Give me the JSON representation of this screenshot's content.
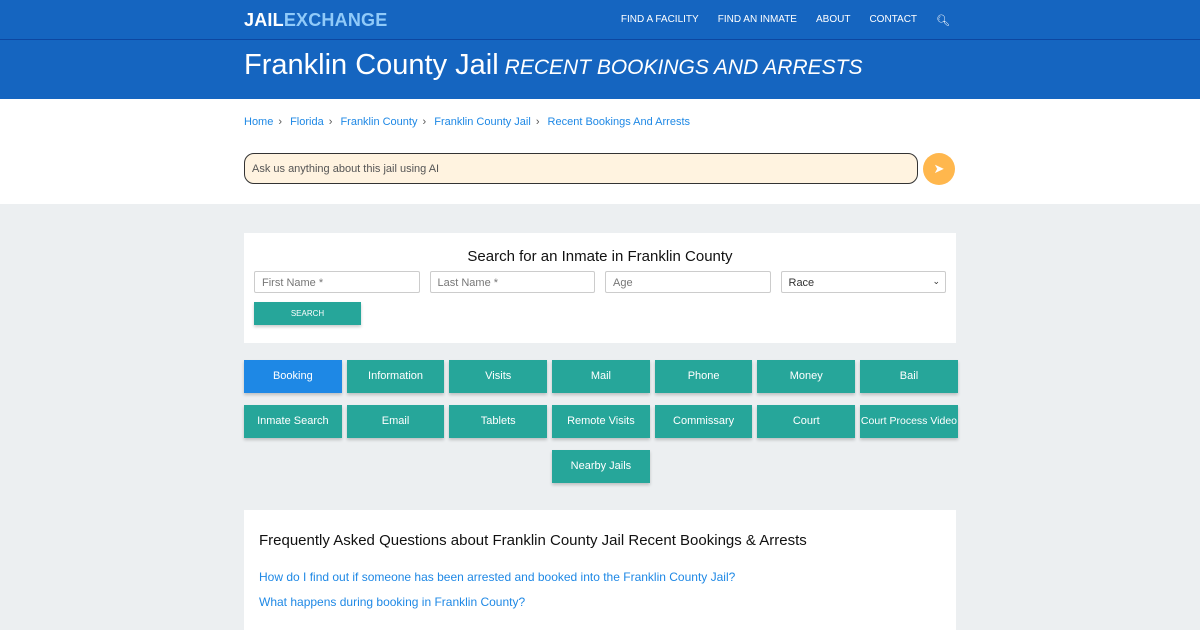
{
  "nav": {
    "logo_left": "JAIL",
    "logo_right": "EXCHANGE",
    "items": [
      "FIND A FACILITY",
      "FIND AN INMATE",
      "ABOUT",
      "CONTACT"
    ],
    "search_icon": "search-icon"
  },
  "header": {
    "title": "Franklin County Jail",
    "subtitle": "RECENT BOOKINGS AND ARRESTS"
  },
  "breadcrumb": [
    "Home",
    "Florida",
    "Franklin County",
    "Franklin County Jail",
    "Recent Bookings And Arrests"
  ],
  "ai": {
    "placeholder": "Ask us anything about this jail using AI"
  },
  "search": {
    "title": "Search for an Inmate in Franklin County",
    "first": "First Name *",
    "last": "Last Name *",
    "age": "Age",
    "race": "Race",
    "button": "SEARCH"
  },
  "buttons": [
    "Booking",
    "Information",
    "Visits",
    "Mail",
    "Phone",
    "Money",
    "Bail",
    "Inmate Search",
    "Email",
    "Tablets",
    "Remote Visits",
    "Commissary",
    "Court",
    "Court Process Video",
    "Nearby Jails"
  ],
  "faq": {
    "title": "Frequently Asked Questions about Franklin County Jail Recent Bookings & Arrests",
    "questions": [
      "How do I find out if someone has been arrested and booked into the Franklin County Jail?",
      "What happens during booking in Franklin County?"
    ]
  }
}
